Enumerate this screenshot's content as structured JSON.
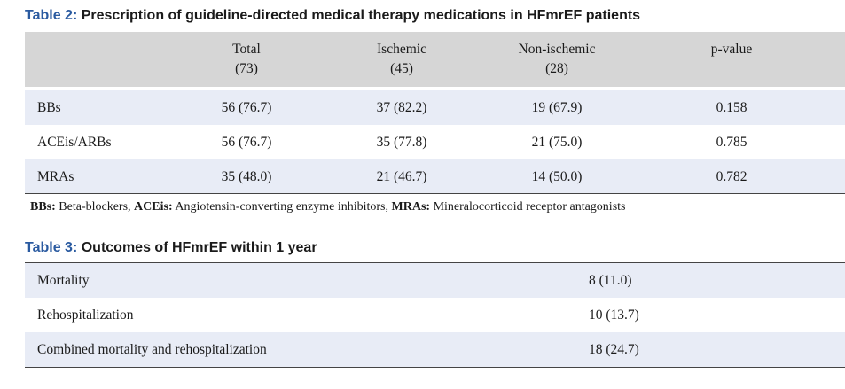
{
  "table2": {
    "caption_num": "Table 2:",
    "caption_text": " Prescription of guideline-directed medical therapy medications in HFmrEF patients",
    "headers": [
      {
        "line1": "Total",
        "line2": "(73)"
      },
      {
        "line1": "Ischemic",
        "line2": "(45)"
      },
      {
        "line1": "Non-ischemic",
        "line2": "(28)"
      },
      {
        "line1": "p-value",
        "line2": ""
      }
    ],
    "rows": [
      {
        "label": "BBs",
        "total": "56 (76.7)",
        "ischemic": "37 (82.2)",
        "nonischemic": "19 (67.9)",
        "p": "0.158"
      },
      {
        "label": "ACEis/ARBs",
        "total": "56 (76.7)",
        "ischemic": "35 (77.8)",
        "nonischemic": "21 (75.0)",
        "p": "0.785"
      },
      {
        "label": "MRAs",
        "total": "35 (48.0)",
        "ischemic": "21 (46.7)",
        "nonischemic": "14 (50.0)",
        "p": "0.782"
      }
    ],
    "footnote": [
      {
        "abbr": "BBs:",
        "text": " Beta-blockers, "
      },
      {
        "abbr": "ACEis:",
        "text": " Angiotensin-converting enzyme inhibitors, "
      },
      {
        "abbr": "MRAs:",
        "text": " Mineralocorticoid receptor antagonists"
      }
    ]
  },
  "table3": {
    "caption_num": "Table 3:",
    "caption_text": " Outcomes of HFmrEF within 1 year",
    "rows": [
      {
        "label": "Mortality",
        "value": "8 (11.0)"
      },
      {
        "label": "Rehospitalization",
        "value": "10 (13.7)"
      },
      {
        "label": "Combined mortality and rehospitalization",
        "value": "18 (24.7)"
      }
    ]
  },
  "colors": {
    "caption_number": "#2a5aa0",
    "header_bg": "#d6d6d6",
    "row_tint": "#e8ecf6"
  }
}
